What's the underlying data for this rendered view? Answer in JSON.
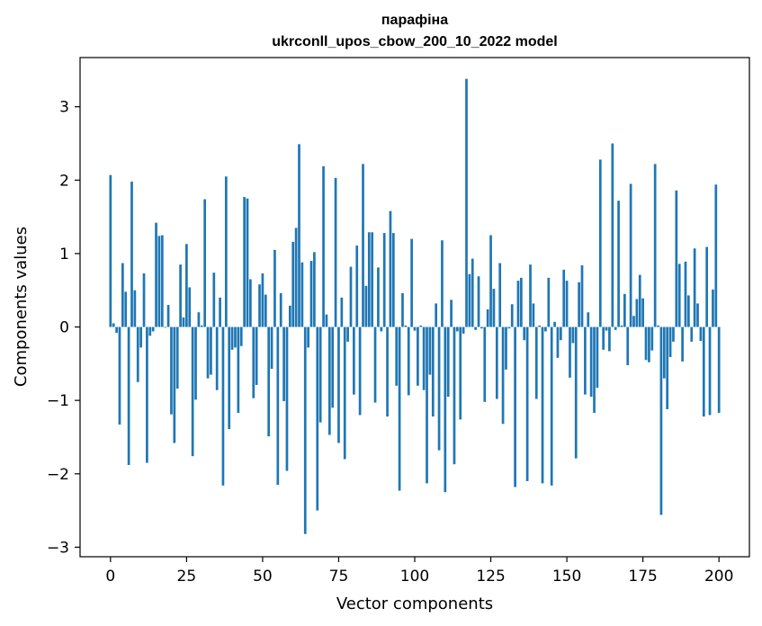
{
  "chart_data": {
    "type": "bar",
    "title": "парафіна",
    "subtitle": "ukrconll_upos_cbow_200_10_2022 model",
    "xlabel": "Vector components",
    "ylabel": "Components values",
    "xlim": [
      -10,
      210
    ],
    "ylim": [
      -3.13,
      3.67
    ],
    "xticks": [
      0,
      25,
      50,
      75,
      100,
      125,
      150,
      175,
      200
    ],
    "yticks": [
      -3,
      -2,
      -1,
      0,
      1,
      2,
      3
    ],
    "ytick_labels": [
      "−3",
      "−2",
      "−1",
      "0",
      "1",
      "2",
      "3"
    ],
    "bar_color": "#1f77b4",
    "grid": false,
    "legend": "none",
    "values": [
      2.07,
      0.05,
      -0.08,
      -1.33,
      0.87,
      0.48,
      -1.88,
      1.98,
      0.5,
      -0.75,
      -0.28,
      0.73,
      -1.85,
      -0.12,
      -0.06,
      1.42,
      1.24,
      1.25,
      -0.01,
      0.3,
      -1.19,
      -1.58,
      -0.84,
      0.85,
      0.13,
      1.13,
      0.54,
      -1.76,
      -0.99,
      0.2,
      0.02,
      1.74,
      -0.7,
      -0.65,
      0.74,
      -0.86,
      0.4,
      -2.16,
      2.05,
      -1.39,
      -0.31,
      -0.28,
      -1.17,
      -0.26,
      1.77,
      1.75,
      0.65,
      -0.97,
      -0.79,
      0.58,
      0.73,
      0.44,
      -1.49,
      -0.57,
      1.05,
      -2.15,
      0.46,
      -1.01,
      -1.96,
      0.29,
      1.16,
      1.35,
      2.49,
      0.88,
      -2.82,
      -0.28,
      0.9,
      1.02,
      -2.5,
      -1.3,
      2.19,
      0.17,
      -1.47,
      -1.1,
      2.03,
      -1.58,
      0.4,
      -1.8,
      -0.2,
      0.82,
      -0.92,
      1.11,
      -1.2,
      2.22,
      0.56,
      1.29,
      1.29,
      -1.03,
      0.81,
      -0.06,
      1.28,
      -1.22,
      1.58,
      1.28,
      -0.8,
      -2.23,
      0.46,
      0.02,
      -0.93,
      1.2,
      -0.05,
      -0.8,
      0.02,
      -0.86,
      -2.13,
      -0.65,
      -1.22,
      0.32,
      -1.68,
      1.18,
      -2.25,
      -0.95,
      0.37,
      -1.87,
      -0.06,
      -1.26,
      -0.09,
      3.38,
      0.72,
      0.93,
      -0.04,
      0.69,
      -0.02,
      -1.02,
      0.24,
      1.25,
      0.52,
      -0.98,
      0.87,
      -1.32,
      -0.58,
      -0.02,
      0.31,
      -2.18,
      0.63,
      0.67,
      -0.18,
      -2.1,
      0.85,
      0.32,
      -0.98,
      0.02,
      -2.13,
      -0.06,
      0.67,
      -2.16,
      0.07,
      -0.42,
      -0.18,
      0.78,
      0.63,
      -0.69,
      -0.22,
      -1.79,
      0.61,
      0.84,
      -0.92,
      0.2,
      -0.95,
      -1.17,
      -0.83,
      2.28,
      -0.31,
      -0.05,
      -0.33,
      2.5,
      -0.04,
      1.72,
      0.02,
      0.45,
      -0.52,
      1.95,
      0.15,
      0.38,
      0.71,
      0.39,
      -0.45,
      -0.48,
      -0.32,
      2.22,
      0.02,
      -2.56,
      -0.7,
      -1.12,
      -0.41,
      -0.2,
      1.86,
      0.86,
      -0.47,
      0.89,
      0.43,
      -0.2,
      1.07,
      0.32,
      -0.19,
      -1.22,
      1.09,
      -1.2,
      0.51,
      1.94,
      -1.17
    ]
  }
}
